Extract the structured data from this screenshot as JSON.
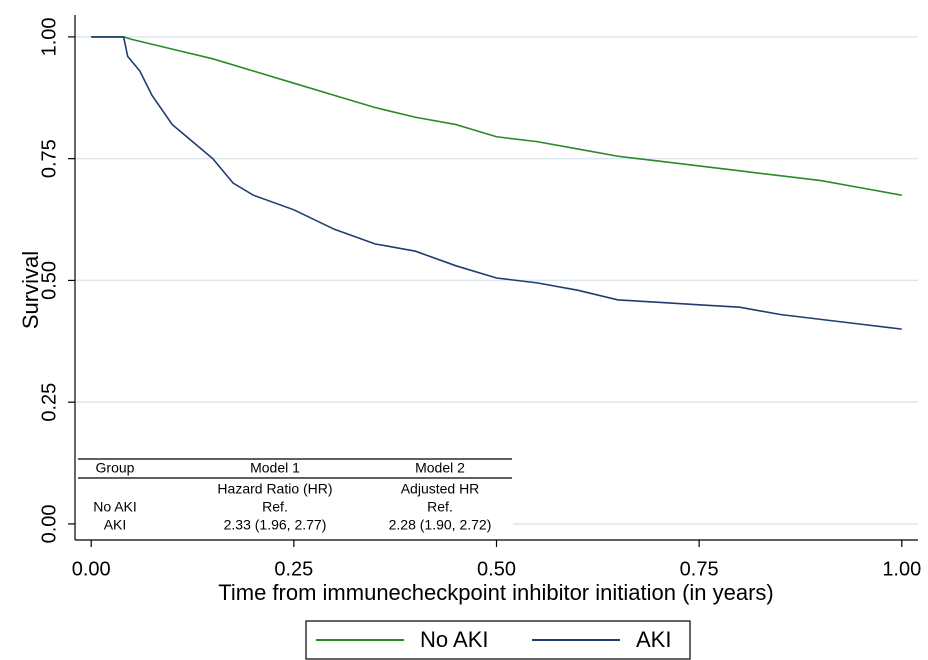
{
  "chart_data": {
    "type": "line",
    "xlabel": "Time from immunecheckpoint inhibitor initiation (in years)",
    "ylabel": "Survival",
    "xlim": [
      -0.02,
      1.02
    ],
    "ylim": [
      -0.033,
      1.045
    ],
    "xticks": [
      {
        "value": 0,
        "label": "0.00"
      },
      {
        "value": 0.25,
        "label": "0.25"
      },
      {
        "value": 0.5,
        "label": "0.50"
      },
      {
        "value": 0.75,
        "label": "0.75"
      },
      {
        "value": 1,
        "label": "1.00"
      }
    ],
    "yticks": [
      {
        "value": 0,
        "label": "0.00"
      },
      {
        "value": 0.25,
        "label": "0.25"
      },
      {
        "value": 0.5,
        "label": "0.50"
      },
      {
        "value": 0.75,
        "label": "0.75"
      },
      {
        "value": 1,
        "label": "1.00"
      }
    ],
    "grid": true,
    "legend": "bottom",
    "series": [
      {
        "name": "No AKI",
        "color": "#2a8a2a",
        "x": [
          0,
          0.04,
          0.05,
          0.1,
          0.15,
          0.2,
          0.25,
          0.3,
          0.35,
          0.4,
          0.45,
          0.5,
          0.55,
          0.6,
          0.65,
          0.7,
          0.75,
          0.8,
          0.85,
          0.9,
          0.95,
          1.0
        ],
        "values": [
          1,
          1,
          0.995,
          0.975,
          0.955,
          0.93,
          0.905,
          0.88,
          0.855,
          0.835,
          0.82,
          0.795,
          0.785,
          0.77,
          0.755,
          0.745,
          0.735,
          0.725,
          0.715,
          0.705,
          0.69,
          0.675
        ]
      },
      {
        "name": "AKI",
        "color": "#1f3d6e",
        "x": [
          0,
          0.04,
          0.045,
          0.06,
          0.075,
          0.1,
          0.125,
          0.15,
          0.175,
          0.2,
          0.25,
          0.3,
          0.35,
          0.4,
          0.45,
          0.5,
          0.55,
          0.6,
          0.65,
          0.7,
          0.75,
          0.8,
          0.85,
          0.9,
          0.95,
          1.0
        ],
        "values": [
          1,
          1,
          0.96,
          0.93,
          0.88,
          0.82,
          0.785,
          0.75,
          0.7,
          0.675,
          0.645,
          0.605,
          0.575,
          0.56,
          0.53,
          0.505,
          0.495,
          0.48,
          0.46,
          0.455,
          0.45,
          0.445,
          0.43,
          0.42,
          0.41,
          0.4
        ]
      }
    ],
    "table": {
      "header": [
        "Group",
        "Model 1",
        "Model 2"
      ],
      "rows": [
        [
          "Hazard Ratio (HR)",
          "Adjusted HR"
        ],
        [
          "No AKI",
          "Ref.",
          "Ref."
        ],
        [
          "AKI",
          "2.33 (1.96, 2.77)",
          "2.28 (1.90, 2.72)"
        ]
      ]
    }
  }
}
